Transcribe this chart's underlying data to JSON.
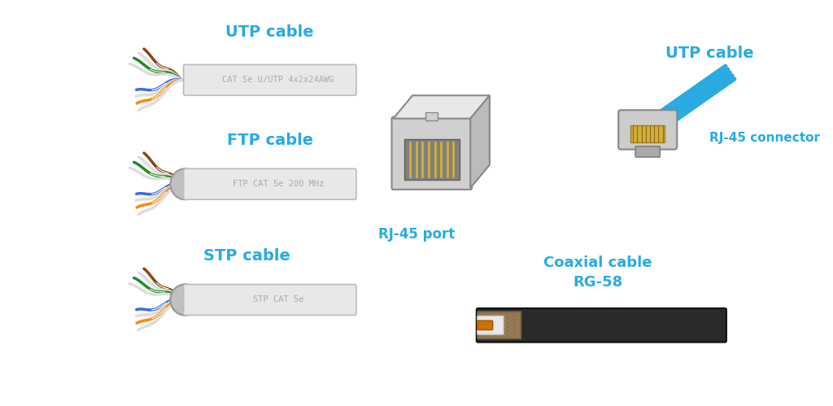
{
  "background_color": "#ffffff",
  "label_color": "#29ABE2",
  "cable_label_color": "#aaaaaa",
  "labels": {
    "utp_cable_left": "UTP cable",
    "ftp_cable": "FTP cable",
    "stp_cable": "STP cable",
    "rj45_port": "RJ-45 port",
    "utp_cable_right": "UTP cable",
    "rj45_connector": "RJ-45 connector",
    "coaxial_cable": "Coaxial cable\nRG-58"
  },
  "utp_label_text": "CAT 5e U/UTP 4x2x24AWG",
  "ftp_label_text": "FTP CAT 5e 200 MHz",
  "stp_label_text": "STP CAT 5e",
  "wire_colors": [
    "#8B4513",
    "#FFFFFF",
    "#228B22",
    "#FFFFFF",
    "#FF8C00",
    "#FFFFFF",
    "#4169E1",
    "#FFFFFF"
  ],
  "wire_colors2": [
    "#8B4513",
    "#FFFFFF",
    "#228B22",
    "#FFFFFF",
    "#FF8C00",
    "#FFFFFF",
    "#4169E1",
    "#FFFFFF"
  ],
  "blue_cable_color": "#29ABE2",
  "coax_outer_color": "#333333",
  "coax_braid_color": "#8B7355",
  "coax_insulator_color": "#DDDDDD",
  "coax_center_color": "#CC7000",
  "figsize": [
    10.24,
    4.99
  ],
  "dpi": 100
}
